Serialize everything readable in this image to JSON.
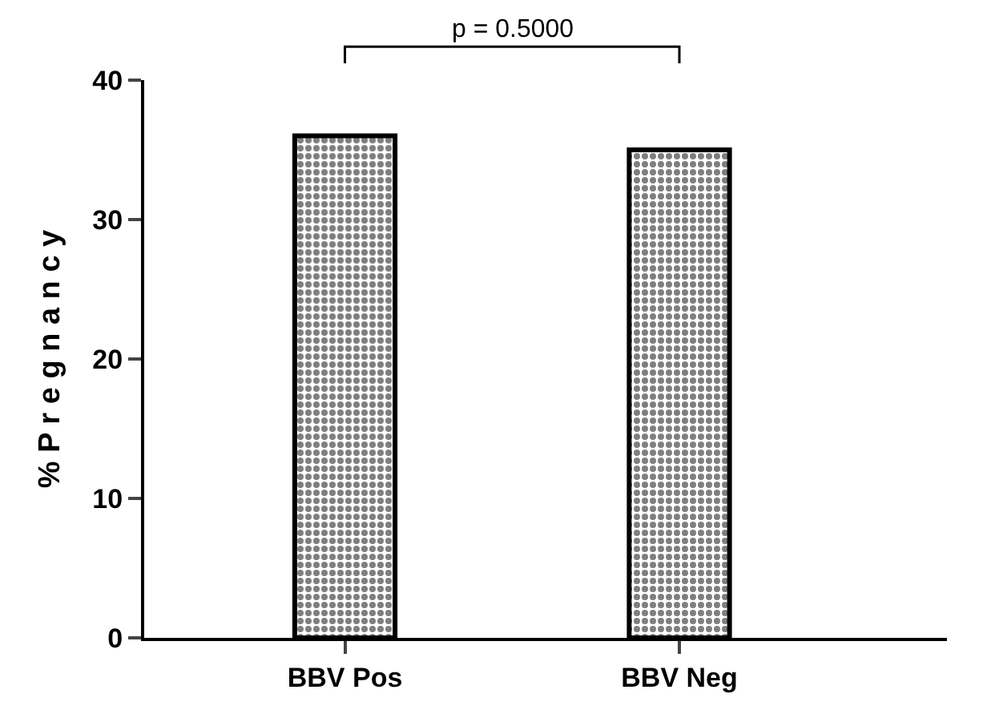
{
  "chart_data": {
    "type": "bar",
    "ylabel": "% P r e g n a n c y",
    "categories": [
      "BBV Pos",
      "BBV Neg"
    ],
    "series": [
      {
        "color": "#000000",
        "values": [
          36,
          35
        ]
      }
    ],
    "ylim": [
      0,
      40
    ],
    "yticks": [
      0,
      10,
      20,
      30,
      40
    ],
    "legend": false,
    "annotations": [
      "p = 0.5000"
    ]
  }
}
